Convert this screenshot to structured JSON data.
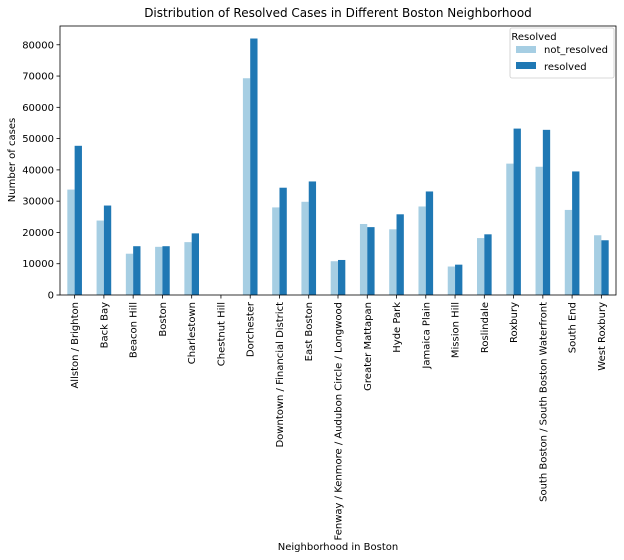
{
  "chart_data": {
    "type": "bar",
    "title": "Distribution of Resolved Cases in Different Boston Neighborhood",
    "xlabel": "Neighborhood in Boston",
    "ylabel": "Number of cases",
    "ylim": [
      0,
      86000
    ],
    "yticks": [
      0,
      10000,
      20000,
      30000,
      40000,
      50000,
      60000,
      70000,
      80000
    ],
    "grid": false,
    "legend": {
      "title": "Resolved",
      "position": "top-right"
    },
    "categories": [
      "Allston / Brighton",
      "Back Bay",
      "Beacon Hill",
      "Boston",
      "Charlestown",
      "Chestnut Hill",
      "Dorchester",
      "Downtown / Financial District",
      "East Boston",
      "Fenway / Kenmore / Audubon Circle / Longwood",
      "Greater Mattapan",
      "Hyde Park",
      "Jamaica Plain",
      "Mission Hill",
      "Roslindale",
      "Roxbury",
      "South Boston / South Boston Waterfront",
      "South End",
      "West Roxbury"
    ],
    "series": [
      {
        "name": "not_resolved",
        "color": "#a6cee3",
        "values": [
          33700,
          23800,
          13200,
          15400,
          16900,
          0,
          69300,
          28000,
          29800,
          10800,
          22700,
          21000,
          28300,
          9100,
          18200,
          42000,
          41000,
          27200,
          19100
        ]
      },
      {
        "name": "resolved",
        "color": "#1f78b4",
        "values": [
          47700,
          28600,
          15600,
          15600,
          19700,
          0,
          82000,
          34300,
          36300,
          11200,
          21700,
          25800,
          33100,
          9700,
          19400,
          53200,
          52800,
          39500,
          17500
        ]
      }
    ]
  }
}
